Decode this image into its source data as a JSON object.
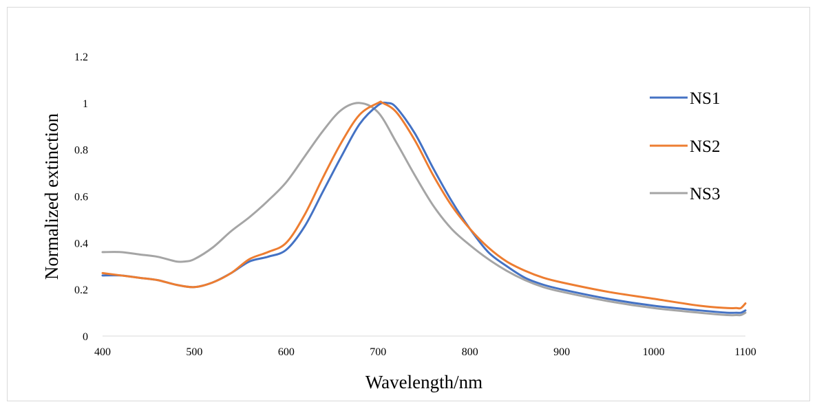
{
  "chart_data": {
    "type": "line",
    "title": "",
    "xlabel": "Wavelength/nm",
    "ylabel": "Normalized extinction",
    "xlim": [
      400,
      1100
    ],
    "ylim": [
      0,
      1.2
    ],
    "xticks": [
      400,
      500,
      600,
      700,
      800,
      900,
      1000,
      1100
    ],
    "yticks": [
      0,
      0.2,
      0.4,
      0.6,
      0.8,
      1,
      1.2
    ],
    "grid": false,
    "legend_position": "right",
    "series": [
      {
        "name": "NS1",
        "color": "#4472c4",
        "x": [
          400,
          420,
          440,
          460,
          480,
          500,
          520,
          540,
          560,
          580,
          600,
          620,
          640,
          660,
          680,
          700,
          710,
          720,
          740,
          760,
          780,
          800,
          820,
          840,
          860,
          880,
          900,
          950,
          1000,
          1050,
          1080,
          1090,
          1095,
          1100
        ],
        "y": [
          0.26,
          0.26,
          0.25,
          0.24,
          0.22,
          0.21,
          0.23,
          0.27,
          0.32,
          0.34,
          0.37,
          0.47,
          0.62,
          0.77,
          0.91,
          0.99,
          1.0,
          0.98,
          0.87,
          0.72,
          0.58,
          0.46,
          0.36,
          0.3,
          0.25,
          0.22,
          0.2,
          0.16,
          0.13,
          0.11,
          0.1,
          0.1,
          0.1,
          0.11
        ]
      },
      {
        "name": "NS2",
        "color": "#ed7d31",
        "x": [
          400,
          420,
          440,
          460,
          480,
          500,
          520,
          540,
          560,
          580,
          600,
          620,
          640,
          660,
          680,
          700,
          705,
          720,
          740,
          760,
          780,
          800,
          820,
          840,
          860,
          880,
          900,
          950,
          1000,
          1050,
          1080,
          1090,
          1095,
          1100
        ],
        "y": [
          0.27,
          0.26,
          0.25,
          0.24,
          0.22,
          0.21,
          0.23,
          0.27,
          0.33,
          0.36,
          0.4,
          0.52,
          0.68,
          0.83,
          0.95,
          1.0,
          1.0,
          0.96,
          0.84,
          0.69,
          0.56,
          0.46,
          0.38,
          0.32,
          0.28,
          0.25,
          0.23,
          0.19,
          0.16,
          0.13,
          0.12,
          0.12,
          0.12,
          0.14
        ]
      },
      {
        "name": "NS3",
        "color": "#a5a5a5",
        "x": [
          400,
          420,
          440,
          460,
          480,
          490,
          500,
          520,
          540,
          560,
          580,
          600,
          620,
          640,
          660,
          680,
          700,
          720,
          740,
          760,
          780,
          800,
          820,
          840,
          860,
          880,
          900,
          950,
          1000,
          1050,
          1080,
          1090,
          1095,
          1100
        ],
        "y": [
          0.36,
          0.36,
          0.35,
          0.34,
          0.32,
          0.32,
          0.33,
          0.38,
          0.45,
          0.51,
          0.58,
          0.66,
          0.77,
          0.88,
          0.97,
          1.0,
          0.96,
          0.83,
          0.69,
          0.56,
          0.46,
          0.39,
          0.33,
          0.28,
          0.24,
          0.21,
          0.19,
          0.15,
          0.12,
          0.1,
          0.09,
          0.09,
          0.09,
          0.1
        ]
      }
    ]
  }
}
